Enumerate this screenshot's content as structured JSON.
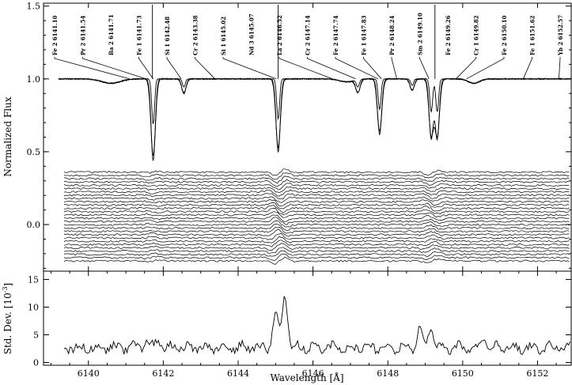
{
  "chart_data": [
    {
      "type": "line",
      "panel": "top",
      "ylabel": "Normalized Flux",
      "xlim": [
        6138.8,
        6152.9
      ],
      "ylim": [
        -0.32,
        1.52
      ],
      "y_ticks": [
        0.0,
        0.5,
        1.0,
        1.5
      ],
      "y_tick_labels": [
        "0.0",
        "0.5",
        "1.0",
        "1.5"
      ],
      "continuum": 1.0,
      "line_ids": [
        {
          "label": "Fe 2 6141.10",
          "x": 6141.1
        },
        {
          "label": "Pr 2 6141.54",
          "x": 6141.54
        },
        {
          "label": "Ba 2 6141.71",
          "x": 6141.71
        },
        {
          "label": "Fe 1 6141.73",
          "x": 6141.73
        },
        {
          "label": "Si 1 6142.48",
          "x": 6142.48
        },
        {
          "label": "Cr 2 6143.38",
          "x": 6143.38
        },
        {
          "label": "Si 1 6145.02",
          "x": 6145.02
        },
        {
          "label": "Nd 3 6145.07",
          "x": 6145.07
        },
        {
          "label": "La 2 6146.52",
          "x": 6146.52
        },
        {
          "label": "Cr 2 6147.14",
          "x": 6147.14
        },
        {
          "label": "Fe 2 6147.74",
          "x": 6147.74
        },
        {
          "label": "Fe 1 6147.83",
          "x": 6147.83
        },
        {
          "label": "Pr 2 6148.24",
          "x": 6148.24
        },
        {
          "label": "Sm 2 6149.10",
          "x": 6149.1
        },
        {
          "label": "Fe 2 6149.26",
          "x": 6149.26
        },
        {
          "label": "Cr 1 6149.82",
          "x": 6149.82
        },
        {
          "label": "Fe 2 6150.10",
          "x": 6150.1
        },
        {
          "label": "Fe 1 6151.62",
          "x": 6151.62
        },
        {
          "label": "Yb 2 6152.57",
          "x": 6152.57
        }
      ],
      "absorption_features": [
        {
          "x": 6141.73,
          "min_flux": 0.44
        },
        {
          "x": 6142.55,
          "min_flux": 0.9
        },
        {
          "x": 6145.07,
          "min_flux": 0.5
        },
        {
          "x": 6147.2,
          "min_flux": 0.91
        },
        {
          "x": 6147.78,
          "min_flux": 0.62
        },
        {
          "x": 6148.65,
          "min_flux": 0.92
        },
        {
          "x": 6149.16,
          "min_flux": 0.59
        },
        {
          "x": 6149.32,
          "min_flux": 0.59
        }
      ],
      "residual_profiles": {
        "count": 28,
        "y_range": [
          -0.25,
          0.36
        ],
        "x_range": [
          6139.35,
          6152.9
        ]
      }
    },
    {
      "type": "line",
      "panel": "bottom",
      "xlabel": "Wavelength [Å]",
      "ylabel": "Std. Dev. [10",
      "ylabel_exponent": "-3",
      "ylabel_close": "]",
      "xlim": [
        6138.8,
        6152.9
      ],
      "ylim": [
        -0.5,
        16.5
      ],
      "x_ticks": [
        6140,
        6142,
        6144,
        6146,
        6148,
        6150,
        6152
      ],
      "x_tick_labels": [
        "6140",
        "6142",
        "6144",
        "6146",
        "6148",
        "6150",
        "6152"
      ],
      "y_ticks": [
        0,
        5,
        10,
        15
      ],
      "y_tick_labels": [
        "0",
        "5",
        "10",
        "15"
      ],
      "baseline": 2.7,
      "peaks": [
        {
          "x": 6141.55,
          "y": 4.2
        },
        {
          "x": 6141.85,
          "y": 4.0
        },
        {
          "x": 6145.0,
          "y": 9.2
        },
        {
          "x": 6145.25,
          "y": 12.3
        },
        {
          "x": 6148.85,
          "y": 6.2
        },
        {
          "x": 6149.15,
          "y": 6.8
        },
        {
          "x": 6150.6,
          "y": 4.1
        }
      ]
    }
  ]
}
